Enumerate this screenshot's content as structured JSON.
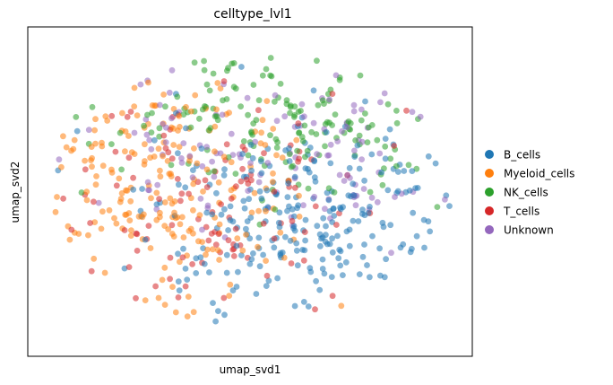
{
  "chart_data": {
    "type": "scatter",
    "title": "celltype_lvl1",
    "xlabel": "umap_svd1",
    "ylabel": "umap_svd2",
    "x_ticks_shown": false,
    "y_ticks_shown": false,
    "grid": false,
    "legend_placement": "right",
    "series": [
      {
        "name": "B_cells",
        "color": "#1f77b4",
        "region": {
          "cx": 0.66,
          "cy": 0.36,
          "rx": 0.36,
          "ry": 0.33
        },
        "count": 260
      },
      {
        "name": "Myeloid_cells",
        "color": "#ff7f0e",
        "region": {
          "cx": 0.28,
          "cy": 0.52,
          "rx": 0.3,
          "ry": 0.4
        },
        "count": 210
      },
      {
        "name": "NK_cells",
        "color": "#2ca02c",
        "region": {
          "cx": 0.57,
          "cy": 0.74,
          "rx": 0.38,
          "ry": 0.22
        },
        "count": 160
      },
      {
        "name": "T_cells",
        "color": "#d62728",
        "region": {
          "cx": 0.42,
          "cy": 0.44,
          "rx": 0.34,
          "ry": 0.36
        },
        "count": 110
      },
      {
        "name": "Unknown",
        "color": "#9467bd",
        "region": {
          "cx": 0.62,
          "cy": 0.64,
          "rx": 0.4,
          "ry": 0.28
        },
        "count": 120
      }
    ],
    "marker_alpha": 0.55
  }
}
